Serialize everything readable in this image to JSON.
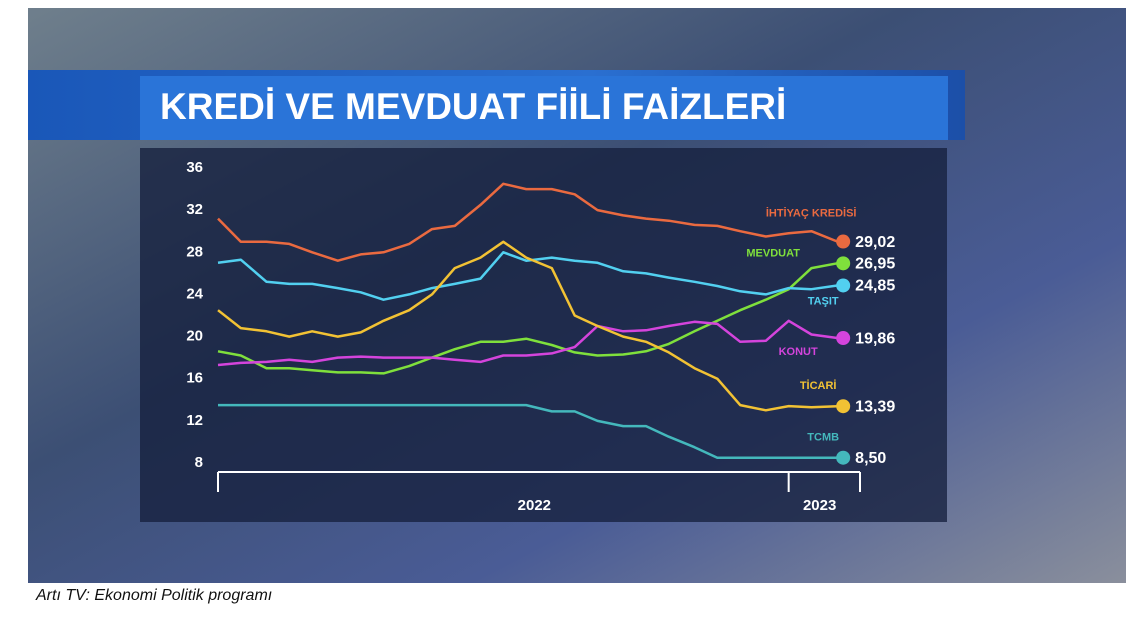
{
  "chart_data": {
    "type": "line",
    "title": "KREDİ VE MEVDUAT FİİLİ FAİZLERİ",
    "caption": "Artı TV: Ekonomi Politik programı",
    "x": [
      2021.0,
      2021.08,
      2021.17,
      2021.25,
      2021.33,
      2021.42,
      2021.5,
      2021.58,
      2021.67,
      2021.75,
      2021.83,
      2021.92,
      2022.0,
      2022.08,
      2022.17,
      2022.25,
      2022.33,
      2022.42,
      2022.5,
      2022.58,
      2022.67,
      2022.75,
      2022.83,
      2022.92,
      2023.0,
      2023.08,
      2023.17
    ],
    "xlim": [
      2021.0,
      2023.25
    ],
    "xticks": [
      2022,
      2023
    ],
    "ylim": [
      8,
      36
    ],
    "yticks": [
      8,
      12,
      16,
      20,
      24,
      28,
      32,
      36
    ],
    "series": [
      {
        "name": "İHTİYAÇ KREDİSİ",
        "color": "#ea6a40",
        "values": [
          31.2,
          29.0,
          29.0,
          28.8,
          28.0,
          27.2,
          27.8,
          28.0,
          28.8,
          30.2,
          30.5,
          32.5,
          34.5,
          34.0,
          34.0,
          33.5,
          32.0,
          31.5,
          31.2,
          31.0,
          30.6,
          30.5,
          30.0,
          29.5,
          29.8,
          30.0,
          29.02
        ],
        "value_labels": [
          "29,02"
        ]
      },
      {
        "name": "MEVDUAT",
        "color": "#7fe03c",
        "values": [
          18.6,
          18.2,
          17.0,
          17.0,
          16.8,
          16.6,
          16.6,
          16.5,
          17.2,
          18.0,
          18.8,
          19.5,
          19.5,
          19.8,
          19.2,
          18.5,
          18.2,
          18.3,
          18.6,
          19.3,
          20.5,
          21.5,
          22.5,
          23.5,
          24.5,
          26.5,
          26.95
        ],
        "value_labels": [
          "26,95"
        ]
      },
      {
        "name": "TAŞIT",
        "color": "#52d0f0",
        "values": [
          27.0,
          27.3,
          25.2,
          25.0,
          25.0,
          24.6,
          24.2,
          23.5,
          24.0,
          24.6,
          25.0,
          25.5,
          28.0,
          27.2,
          27.5,
          27.2,
          27.0,
          26.2,
          26.0,
          25.6,
          25.2,
          24.8,
          24.3,
          24.0,
          24.6,
          24.5,
          24.85
        ],
        "value_labels": [
          "24,85"
        ]
      },
      {
        "name": "KONUT",
        "color": "#d444dc",
        "values": [
          17.3,
          17.5,
          17.6,
          17.8,
          17.6,
          18.0,
          18.1,
          18.0,
          18.0,
          18.0,
          17.8,
          17.6,
          18.2,
          18.2,
          18.4,
          19.0,
          21.0,
          20.5,
          20.6,
          21.0,
          21.4,
          21.2,
          19.5,
          19.6,
          21.5,
          20.2,
          19.86
        ],
        "value_labels": [
          "19,86"
        ]
      },
      {
        "name": "TİCARİ",
        "color": "#f2c234",
        "values": [
          22.5,
          20.8,
          20.5,
          20.0,
          20.5,
          20.0,
          20.4,
          21.5,
          22.5,
          24.0,
          26.5,
          27.5,
          29.0,
          27.5,
          26.5,
          22.0,
          21.0,
          20.0,
          19.5,
          18.5,
          17.0,
          16.0,
          13.5,
          13.0,
          13.4,
          13.3,
          13.39
        ],
        "value_labels": [
          "13,39"
        ]
      },
      {
        "name": "TCMB",
        "color": "#44b8bc",
        "values": [
          13.5,
          13.5,
          13.5,
          13.5,
          13.5,
          13.5,
          13.5,
          13.5,
          13.5,
          13.5,
          13.5,
          13.5,
          13.5,
          13.5,
          12.9,
          12.9,
          12.0,
          11.5,
          11.5,
          10.5,
          9.5,
          8.5,
          8.5,
          8.5,
          8.5,
          8.5,
          8.5
        ],
        "value_labels": [
          "8,50"
        ]
      }
    ]
  }
}
